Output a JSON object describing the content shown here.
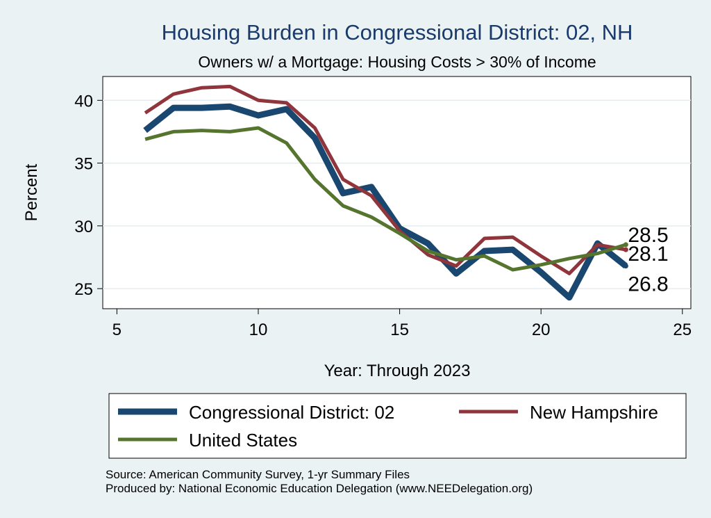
{
  "chart_data": {
    "type": "line",
    "title": "Housing Burden in Congressional District:  02, NH",
    "subtitle": "Owners w/ a Mortgage: Housing Costs > 30% of Income",
    "xlabel": "Year: Through 2023",
    "ylabel": "Percent",
    "xlim": [
      4.5,
      25.3
    ],
    "ylim": [
      23.4,
      41.9
    ],
    "x_ticks": [
      5,
      10,
      15,
      20,
      25
    ],
    "y_ticks": [
      25,
      30,
      35,
      40
    ],
    "grid": true,
    "legend_position": "bottom",
    "x": [
      6,
      7,
      8,
      9,
      10,
      11,
      12,
      13,
      14,
      15,
      16,
      17,
      18,
      19,
      20,
      21,
      22,
      23
    ],
    "series": [
      {
        "name": "Congressional District:  02",
        "color": "#1a476f",
        "width": 9,
        "values": [
          37.6,
          39.4,
          39.4,
          39.5,
          38.8,
          39.3,
          37.0,
          32.6,
          33.1,
          29.8,
          28.6,
          26.2,
          28.0,
          28.1,
          26.3,
          24.3,
          28.6,
          26.8
        ],
        "end_label": "26.8"
      },
      {
        "name": "New Hampshire",
        "color": "#90353b",
        "width": 5,
        "values": [
          39.0,
          40.5,
          41.0,
          41.1,
          40.0,
          39.8,
          37.8,
          33.7,
          32.4,
          29.6,
          27.7,
          26.8,
          29.0,
          29.1,
          27.6,
          26.2,
          28.5,
          28.1
        ],
        "end_label": "28.1"
      },
      {
        "name": "United States",
        "color": "#55752f",
        "width": 5,
        "values": [
          36.9,
          37.5,
          37.6,
          37.5,
          37.8,
          36.6,
          33.7,
          31.6,
          30.7,
          29.4,
          28.0,
          27.3,
          27.6,
          26.5,
          26.9,
          27.4,
          27.8,
          28.5
        ],
        "end_label": "28.5"
      }
    ]
  },
  "notes": {
    "source": "Source: American Community Survey, 1-yr Summary Files",
    "produced_by": "Produced by: National Economic Education Delegation (www.NEEDelegation.org)"
  }
}
